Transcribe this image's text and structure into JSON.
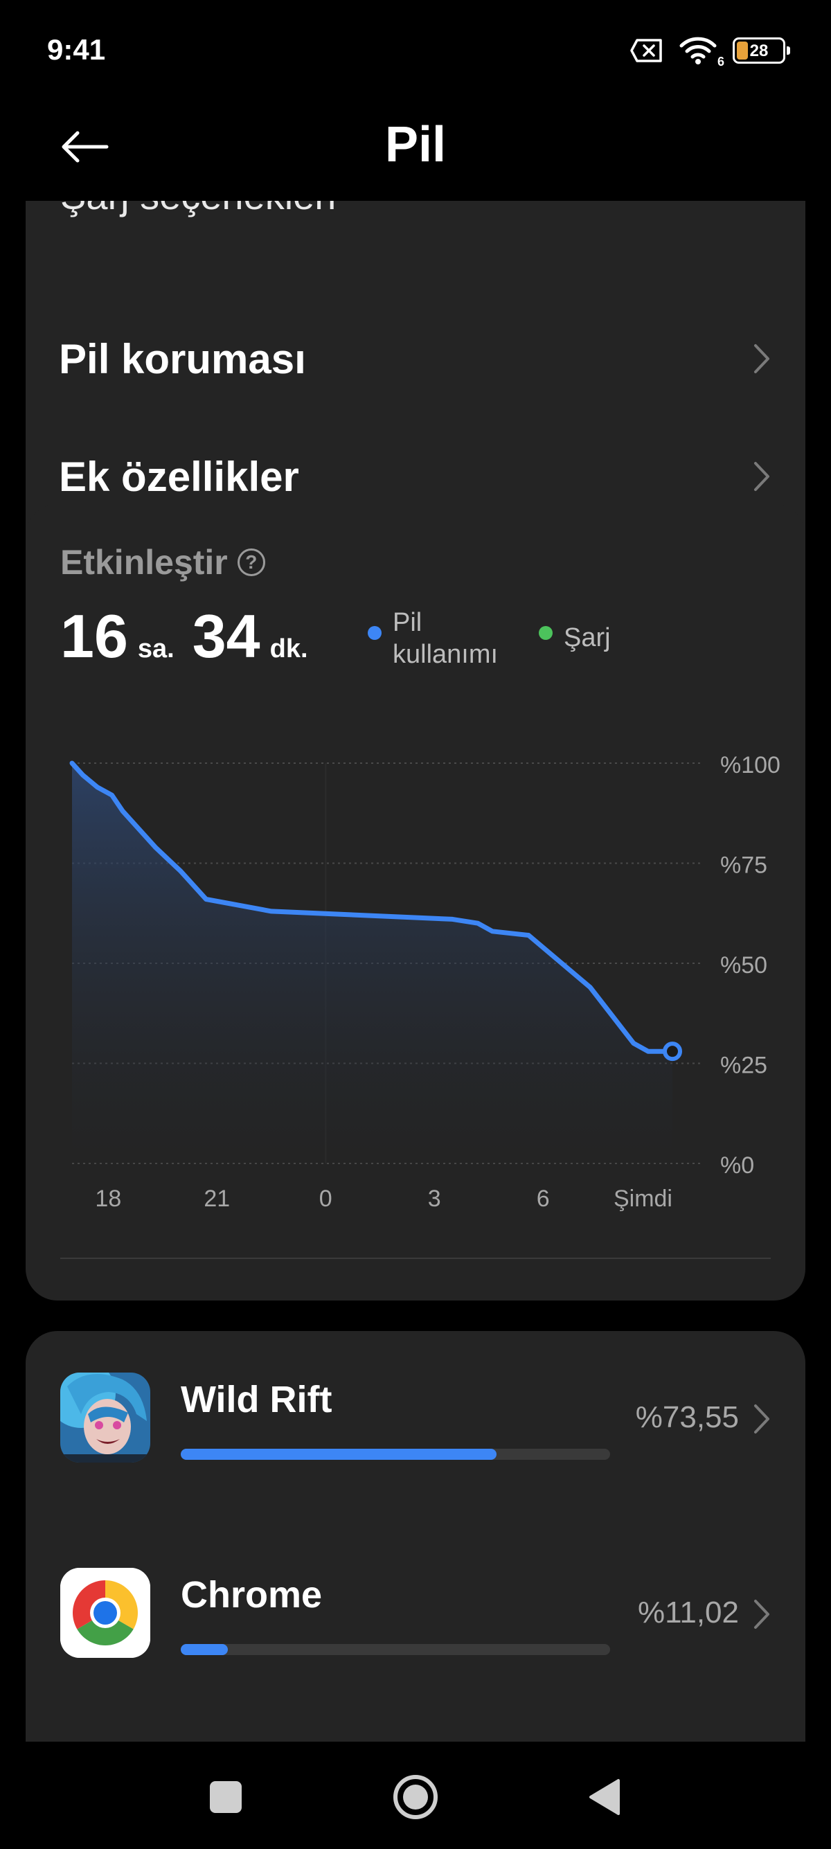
{
  "status": {
    "time": "9:41",
    "battery_level": "28",
    "wifi_badge": "6"
  },
  "header": {
    "title": "Pil"
  },
  "settings": {
    "clipped_item": "Şarj seçenekleri",
    "items": [
      {
        "label": "Pil koruması"
      },
      {
        "label": "Ek özellikler"
      }
    ]
  },
  "usage": {
    "enable_label": "Etkinleştir",
    "hours": "16",
    "hours_unit": "sa.",
    "minutes": "34",
    "minutes_unit": "dk.",
    "legend": [
      {
        "label_line1": "Pil",
        "label_line2": "kullanımı",
        "color": "#3d86f5"
      },
      {
        "label_line1": "Şarj",
        "label_line2": "",
        "color": "#4cc35c"
      }
    ]
  },
  "chart_data": {
    "type": "area",
    "series": [
      {
        "name": "Pil kullanımı",
        "x_hours": [
          0,
          0.3,
          0.7,
          1.1,
          1.4,
          1.6,
          2.3,
          3.0,
          3.7,
          5.5,
          10.5,
          11.2,
          11.6,
          12.6,
          14.3,
          15.5,
          15.9,
          16.57
        ],
        "values": [
          100,
          97,
          94,
          92,
          88,
          86,
          79,
          73,
          66,
          63,
          61,
          60,
          58,
          57,
          44,
          30,
          28,
          28
        ]
      }
    ],
    "x_tick_labels": [
      "18",
      "21",
      "0",
      "3",
      "6",
      "Şimdi"
    ],
    "x_tick_hours": [
      1.0,
      4.0,
      7.0,
      10.0,
      13.0,
      16.57
    ],
    "x_range_hours": [
      0,
      16.57
    ],
    "y_tick_labels": [
      "%100",
      "%75",
      "%50",
      "%25",
      "%0"
    ],
    "y_tick_values": [
      100,
      75,
      50,
      25,
      0
    ],
    "ylim": [
      0,
      100
    ],
    "line_color": "#3d86f5",
    "grid": true
  },
  "apps": [
    {
      "name": "Wild Rift",
      "percent_label": "%73,55",
      "bar_fraction": 0.7355
    },
    {
      "name": "Chrome",
      "percent_label": "%11,02",
      "bar_fraction": 0.1102
    }
  ],
  "nav": {
    "recents_icon": "square-icon",
    "home_icon": "circle-icon",
    "back_icon": "triangle-icon"
  }
}
